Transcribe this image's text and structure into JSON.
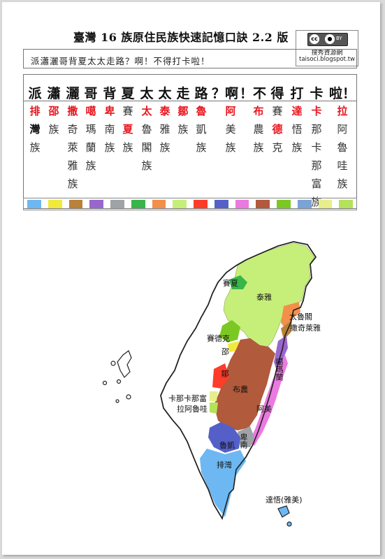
{
  "title": "臺灣 16 族原住民族快速記憶口訣 2.2 版",
  "license": {
    "badge_cc": "cc",
    "badge_by": "BY",
    "author": "搜秀資源網",
    "url": "taisoci.blogspot.tw"
  },
  "slogan": "派瀟灑哥背夏太太走路？啊！不得打卡啦！",
  "mnemonic": [
    {
      "head": "派",
      "chars": [
        {
          "t": "排",
          "s": "red"
        },
        {
          "t": "灣",
          "s": "black"
        },
        {
          "t": "族",
          "s": ""
        }
      ]
    },
    {
      "head": "瀟",
      "chars": [
        {
          "t": "邵",
          "s": "red"
        },
        {
          "t": "族",
          "s": ""
        }
      ]
    },
    {
      "head": "灑",
      "chars": [
        {
          "t": "撒",
          "s": "red"
        },
        {
          "t": "奇",
          "s": ""
        },
        {
          "t": "萊",
          "s": ""
        },
        {
          "t": "雅",
          "s": ""
        },
        {
          "t": "族",
          "s": ""
        }
      ]
    },
    {
      "head": "哥",
      "chars": [
        {
          "t": "噶",
          "s": "red"
        },
        {
          "t": "瑪",
          "s": ""
        },
        {
          "t": "蘭",
          "s": ""
        },
        {
          "t": "族",
          "s": ""
        }
      ]
    },
    {
      "head": "背",
      "chars": [
        {
          "t": "卑",
          "s": "red"
        },
        {
          "t": "南",
          "s": ""
        },
        {
          "t": "族",
          "s": ""
        }
      ]
    },
    {
      "head": "夏",
      "chars": [
        {
          "t": "賽",
          "s": ""
        },
        {
          "t": "夏",
          "s": "red"
        },
        {
          "t": "族",
          "s": ""
        }
      ]
    },
    {
      "head": "太",
      "chars": [
        {
          "t": "太",
          "s": "red"
        },
        {
          "t": "魯",
          "s": ""
        },
        {
          "t": "閣",
          "s": ""
        },
        {
          "t": "族",
          "s": ""
        }
      ]
    },
    {
      "head": "太",
      "chars": [
        {
          "t": "泰",
          "s": "red"
        },
        {
          "t": "雅",
          "s": ""
        },
        {
          "t": "族",
          "s": ""
        }
      ]
    },
    {
      "head": "走",
      "chars": [
        {
          "t": "鄒",
          "s": "red"
        },
        {
          "t": "族",
          "s": ""
        }
      ]
    },
    {
      "head": "路",
      "chars": [
        {
          "t": "魯",
          "s": "red"
        },
        {
          "t": "凱",
          "s": ""
        },
        {
          "t": "族",
          "s": ""
        }
      ]
    },
    {
      "head": "？啊",
      "chars": [
        {
          "t": "阿",
          "s": "red"
        },
        {
          "t": "美",
          "s": ""
        },
        {
          "t": "族",
          "s": ""
        }
      ]
    },
    {
      "head": "！不",
      "chars": [
        {
          "t": "布",
          "s": "red"
        },
        {
          "t": "農",
          "s": ""
        },
        {
          "t": "族",
          "s": ""
        }
      ]
    },
    {
      "head": "得",
      "chars": [
        {
          "t": "賽",
          "s": ""
        },
        {
          "t": "德",
          "s": "red"
        },
        {
          "t": "克",
          "s": ""
        }
      ]
    },
    {
      "head": "打",
      "chars": [
        {
          "t": "達",
          "s": "red"
        },
        {
          "t": "悟",
          "s": ""
        },
        {
          "t": "族",
          "s": ""
        }
      ]
    },
    {
      "head": "卡",
      "chars": [
        {
          "t": "卡",
          "s": "red"
        },
        {
          "t": "那",
          "s": ""
        },
        {
          "t": "卡",
          "s": ""
        },
        {
          "t": "那",
          "s": ""
        },
        {
          "t": "富",
          "s": ""
        },
        {
          "t": "族",
          "s": ""
        }
      ]
    },
    {
      "head": "啦！",
      "chars": [
        {
          "t": "拉",
          "s": "red"
        },
        {
          "t": "阿",
          "s": ""
        },
        {
          "t": "魯",
          "s": ""
        },
        {
          "t": "哇",
          "s": ""
        },
        {
          "t": "族",
          "s": ""
        }
      ]
    }
  ],
  "swatch_colors": [
    "#6db8f2",
    "#f2ea3a",
    "#b9813a",
    "#9966cc",
    "#9ea3a8",
    "#39b54a",
    "#f2904a",
    "#c6ef7a",
    "#ff3c2a",
    "#5460c8",
    "#ea7ae0",
    "#b15a3c",
    "#7cc823",
    "#7aa3d6",
    "#e8ee8a",
    "#b4e25a"
  ],
  "map": {
    "labels": {
      "saisiyat": "賽夏",
      "atayal": "泰雅",
      "truku": "太魯閣",
      "sakizaya": "撒奇萊雅",
      "seediq": "賽德克",
      "thao": "邵",
      "kavalan": "噶瑪蘭",
      "tsou": "鄒",
      "bunun": "布農",
      "kanakanavu": "卡那卡那富",
      "hla_alua": "拉阿魯哇",
      "amis": "阿美",
      "rukai": "魯凱",
      "puyuma": "卑南",
      "paiwan": "排灣",
      "tao": "達悟(雅美)"
    }
  }
}
